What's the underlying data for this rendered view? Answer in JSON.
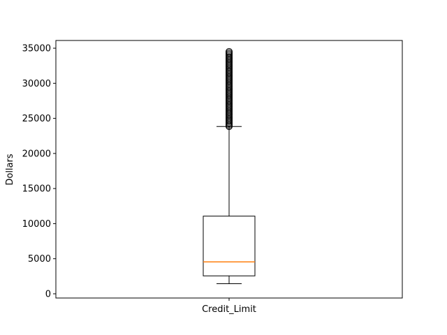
{
  "chart_data": {
    "type": "box",
    "title": "",
    "xlabel": "",
    "ylabel": "Dollars",
    "categories": [
      "Credit_Limit"
    ],
    "ylim": [
      -600,
      36100
    ],
    "yticks": [
      0,
      5000,
      10000,
      15000,
      20000,
      25000,
      30000,
      35000
    ],
    "ytick_labels": [
      "0",
      "5000",
      "10000",
      "15000",
      "20000",
      "25000",
      "30000",
      "35000"
    ],
    "grid": false,
    "box": {
      "whisker_low": 1438,
      "q1": 2555,
      "median": 4549,
      "q3": 11068,
      "whisker_high": 23836,
      "outlier_range": [
        23850,
        34516
      ]
    },
    "colors": {
      "median": "#ff7f0e",
      "box": "#000000"
    }
  }
}
